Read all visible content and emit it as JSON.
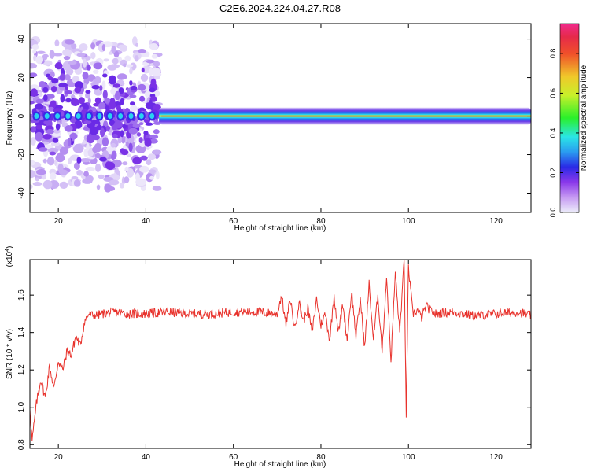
{
  "title": "C2E6.2024.224.04.27.R08",
  "colors": {
    "snr_line": "#e8322c",
    "center_band": "#e0302a",
    "colorbar_stops": [
      "#e6e6fa",
      "#b07cf0",
      "#7a28e6",
      "#2a2ae6",
      "#2ad2f0",
      "#2af02a",
      "#e0f02a",
      "#f0a02a",
      "#e62a2a",
      "#f02a8c"
    ]
  },
  "chart_data": [
    {
      "type": "heatmap",
      "xlabel": "Height of straight line (km)",
      "ylabel": "Frequency (Hz)",
      "xlim": [
        13.5,
        128
      ],
      "ylim": [
        -50,
        48
      ],
      "xticks": [
        20,
        40,
        60,
        80,
        100,
        120
      ],
      "yticks": [
        -40,
        -20,
        0,
        20,
        40
      ],
      "grid": false,
      "colorbar": {
        "label": "Normalized spectral amplitude",
        "range": [
          0,
          0.95
        ],
        "ticks": [
          0.0,
          0.2,
          0.4,
          0.6,
          0.8
        ]
      },
      "regions": [
        {
          "x_range": [
            13.5,
            43
          ],
          "kind": "scattered",
          "freq_spread_hz": [
            -38,
            40
          ],
          "peak_amplitude": 0.35
        },
        {
          "x_range": [
            43,
            128
          ],
          "kind": "narrow_band",
          "center_hz": 0,
          "half_width_hz": 2,
          "peak_amplitude": 0.9
        }
      ]
    },
    {
      "type": "line",
      "xlabel": "Height of straight line (km)",
      "ylabel": "SNR (10 * v/v)",
      "y_scale_label": "(x10",
      "y_scale_exp": "4",
      "xlim": [
        13.5,
        128
      ],
      "ylim": [
        0.78,
        1.79
      ],
      "xticks": [
        20,
        40,
        60,
        80,
        100,
        120
      ],
      "yticks": [
        0.8,
        1.0,
        1.2,
        1.4,
        1.6
      ],
      "grid": false,
      "series": [
        {
          "x": [
            13.5,
            14,
            15,
            16,
            17,
            18,
            19,
            20,
            21,
            22,
            23,
            24,
            25,
            26,
            27,
            28,
            30,
            33,
            36,
            40,
            45,
            50,
            55,
            60,
            65,
            70,
            71,
            72,
            73,
            74,
            75,
            76,
            77,
            78,
            79,
            80,
            81,
            82,
            83,
            84,
            85,
            86,
            87,
            88,
            89,
            90,
            91,
            92,
            93,
            94,
            95,
            96,
            97,
            98,
            99,
            99.5,
            100,
            101,
            102,
            103,
            104,
            106,
            110,
            115,
            120,
            125,
            128
          ],
          "y": [
            1.0,
            0.82,
            1.02,
            1.15,
            1.05,
            1.22,
            1.1,
            1.25,
            1.2,
            1.3,
            1.28,
            1.38,
            1.33,
            1.46,
            1.5,
            1.49,
            1.5,
            1.51,
            1.5,
            1.5,
            1.51,
            1.5,
            1.5,
            1.51,
            1.51,
            1.5,
            1.6,
            1.44,
            1.58,
            1.42,
            1.56,
            1.46,
            1.53,
            1.4,
            1.58,
            1.44,
            1.5,
            1.36,
            1.6,
            1.4,
            1.55,
            1.36,
            1.62,
            1.38,
            1.58,
            1.32,
            1.66,
            1.36,
            1.6,
            1.3,
            1.7,
            1.25,
            1.72,
            1.4,
            1.78,
            0.96,
            1.75,
            1.5,
            1.52,
            1.48,
            1.54,
            1.5,
            1.51,
            1.49,
            1.5,
            1.51,
            1.49
          ]
        }
      ]
    }
  ]
}
